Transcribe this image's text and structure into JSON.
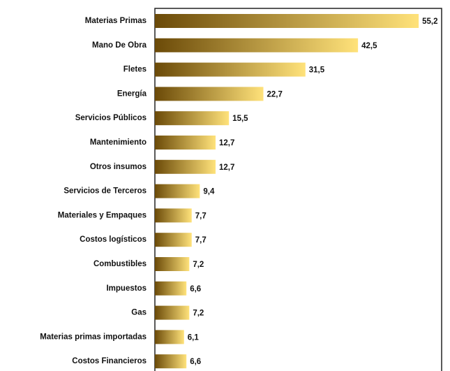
{
  "chart_data": {
    "type": "barh",
    "categories": [
      "Materias Primas",
      "Mano De Obra",
      "Fletes",
      "Energía",
      "Servicios Públicos",
      "Mantenimiento",
      "Otros insumos",
      "Servicios de Terceros",
      "Materiales y Empaques",
      "Costos logísticos",
      "Combustibles",
      "Impuestos",
      "Gas",
      "Materias primas importadas",
      "Costos Financieros"
    ],
    "values": [
      55.2,
      42.5,
      31.5,
      22.7,
      15.5,
      12.7,
      12.7,
      9.4,
      7.7,
      7.7,
      7.2,
      6.6,
      7.2,
      6.1,
      6.6
    ],
    "value_labels": [
      "55,2",
      "42,5",
      "31,5",
      "22,7",
      "15,5",
      "12,7",
      "12,7",
      "9,4",
      "7,7",
      "7,7",
      "7,2",
      "6,6",
      "7,2",
      "6,1",
      "6,6"
    ],
    "gradient": [
      "#6b4a08",
      "#ffe27a"
    ],
    "xlim": [
      0,
      60
    ]
  }
}
